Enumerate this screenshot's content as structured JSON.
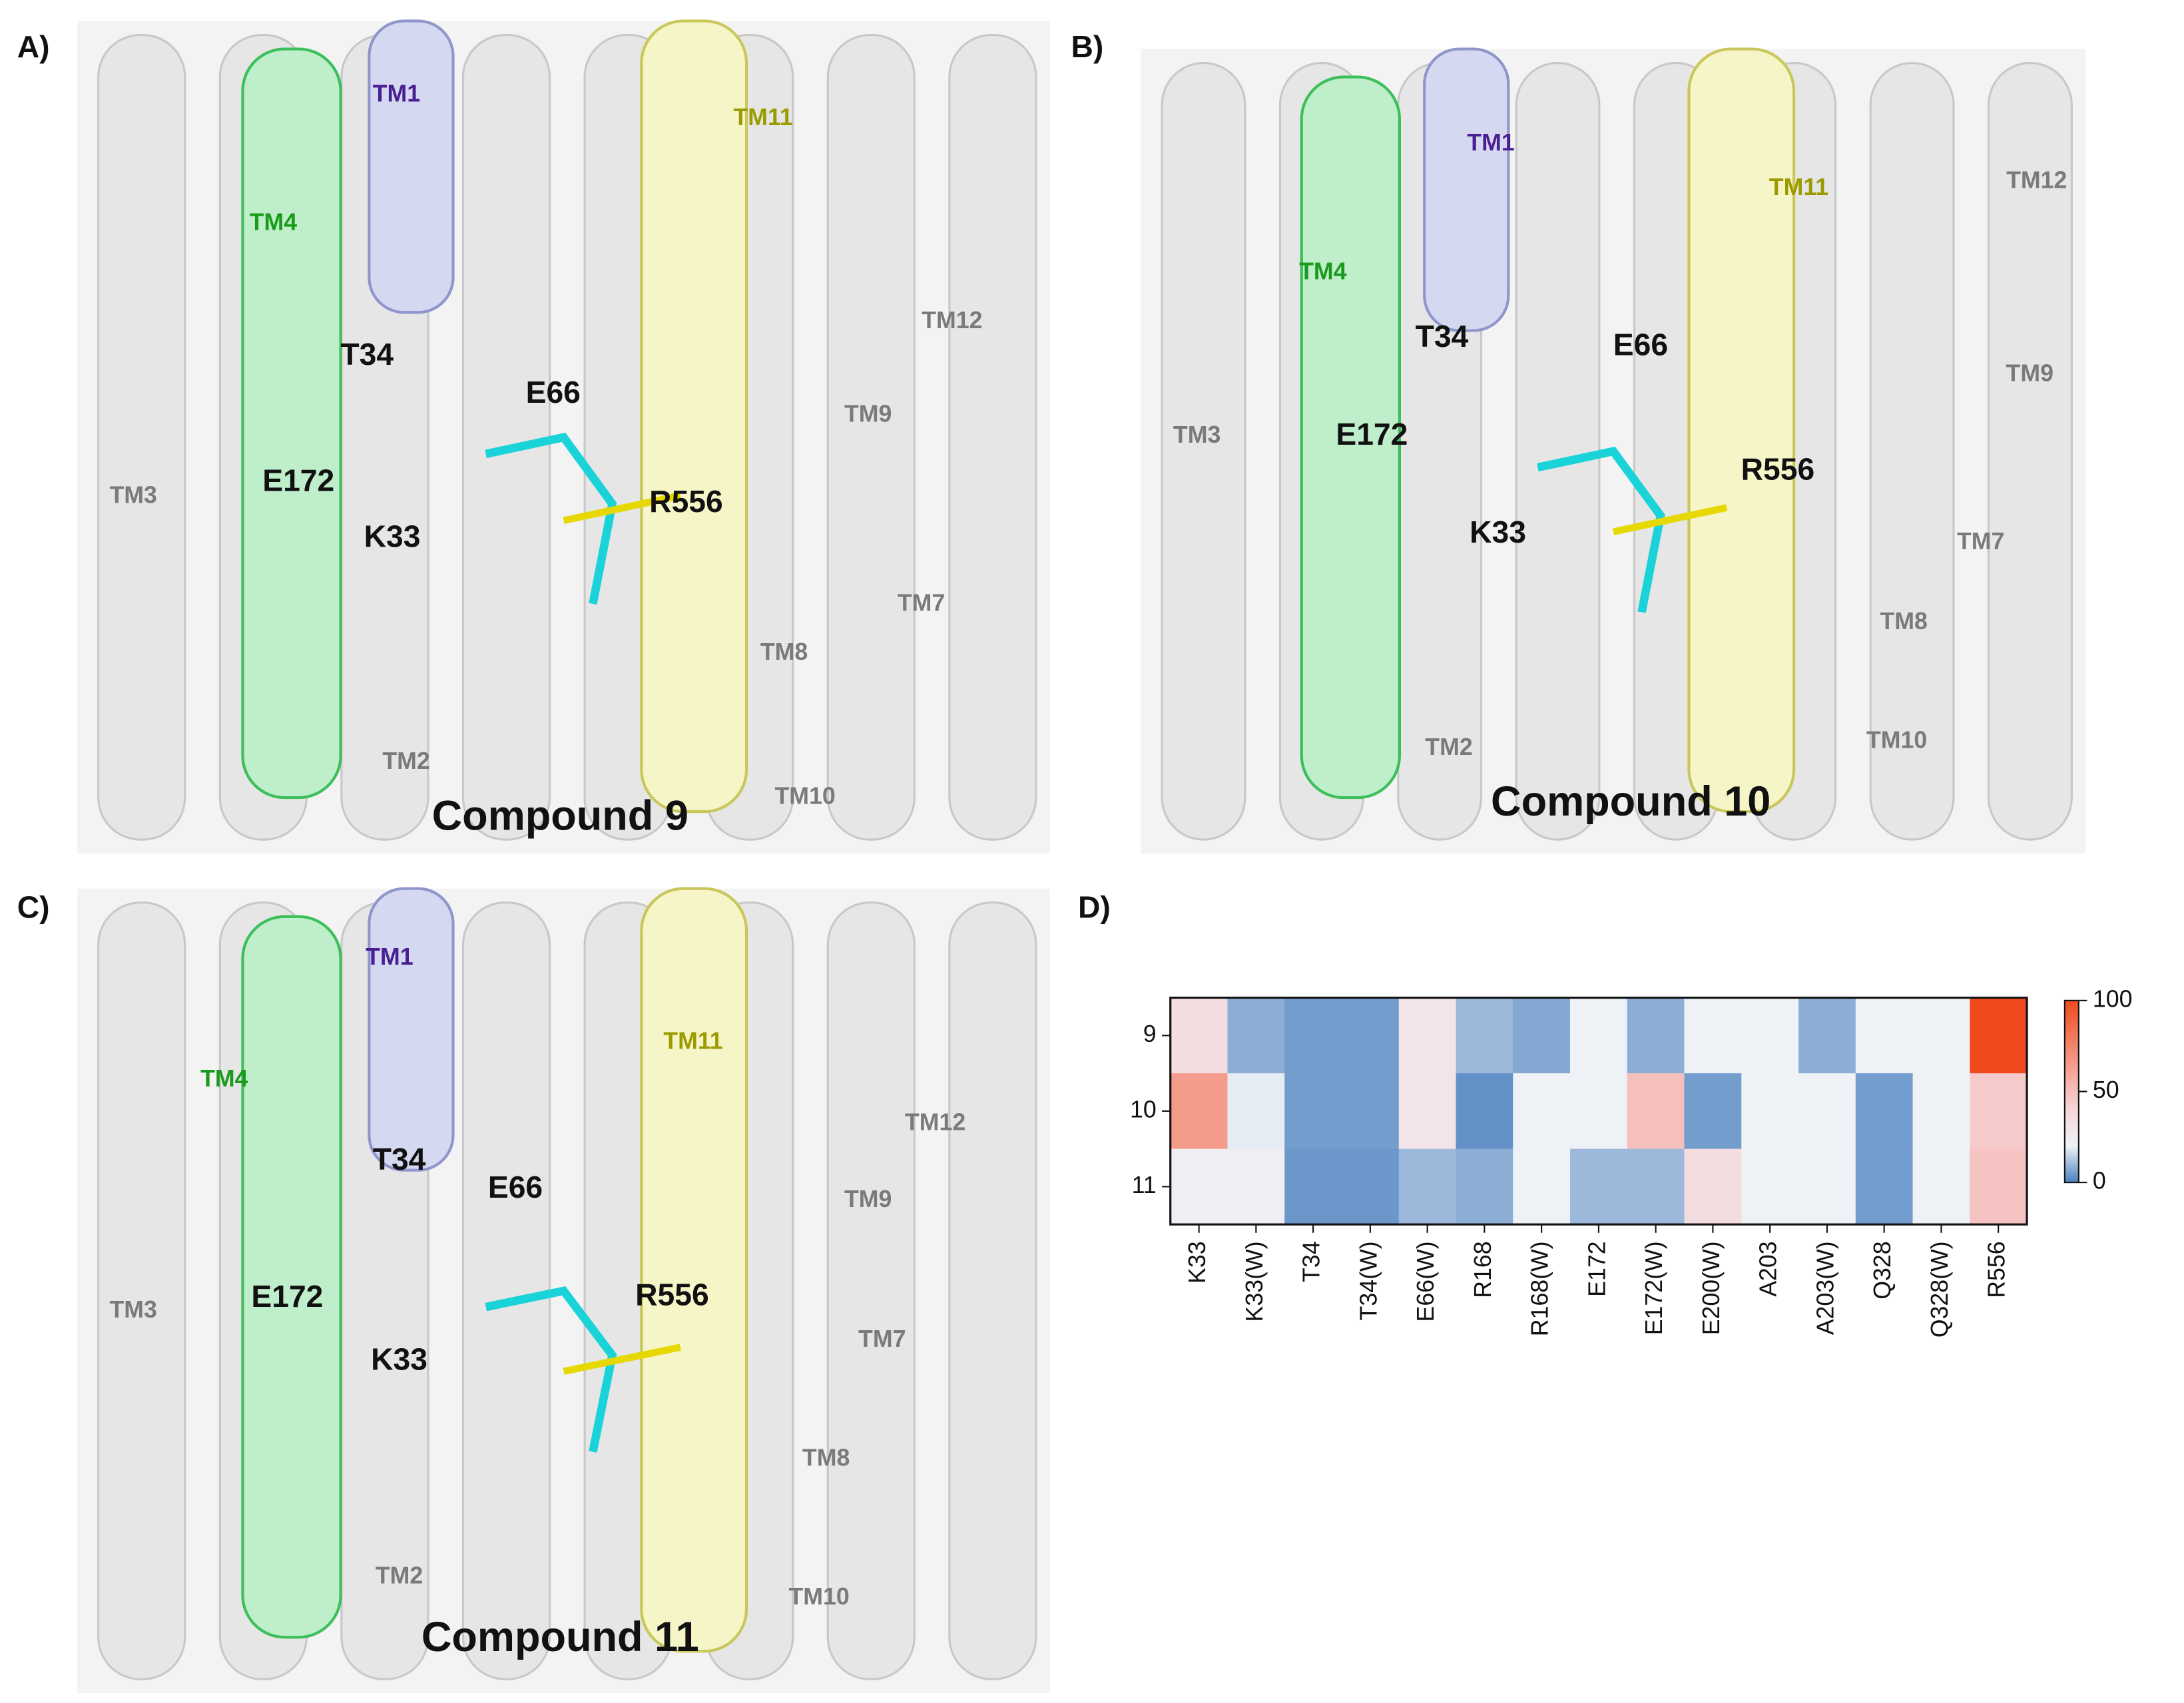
{
  "panels": [
    {
      "label": "A)",
      "caption": "Compound 9",
      "labels": [
        "TM1",
        "TM11",
        "TM4",
        "T34",
        "E66",
        "E172",
        "K33",
        "R556",
        "TM3",
        "TM12",
        "TM9",
        "TM7",
        "TM8",
        "TM2",
        "TM10"
      ]
    },
    {
      "label": "B)",
      "caption": "Compound 10",
      "labels": [
        "TM1",
        "TM11",
        "TM12",
        "TM4",
        "T34",
        "E66",
        "TM9",
        "TM3",
        "E172",
        "R556",
        "K33",
        "TM7",
        "TM8",
        "TM2",
        "TM10"
      ]
    },
    {
      "label": "C)",
      "caption": "Compound 11",
      "labels": [
        "TM1",
        "TM11",
        "TM4",
        "TM12",
        "T34",
        "E66",
        "TM9",
        "TM3",
        "E172",
        "R556",
        "TM7",
        "K33",
        "TM8",
        "TM2",
        "TM10"
      ]
    }
  ],
  "chart_data": {
    "type": "heatmap",
    "label": "D)",
    "rows": [
      "9",
      "10",
      "11"
    ],
    "columns": [
      "K33",
      "K33(W)",
      "T34",
      "T34(W)",
      "E66(W)",
      "R168",
      "R168(W)",
      "E172",
      "E172(W)",
      "E200(W)",
      "A203",
      "A203(W)",
      "Q328",
      "Q328(W)",
      "R556"
    ],
    "values": [
      [
        35,
        8,
        5,
        5,
        30,
        10,
        7,
        20,
        8,
        20,
        20,
        8,
        20,
        20,
        100
      ],
      [
        65,
        19,
        5,
        5,
        30,
        3,
        20,
        20,
        50,
        5,
        20,
        20,
        5,
        20,
        45
      ],
      [
        22,
        22,
        4,
        4,
        10,
        8,
        20,
        10,
        10,
        35,
        20,
        20,
        5,
        20,
        48
      ]
    ],
    "zlim": [
      0,
      100
    ],
    "zticks": [
      0,
      50,
      100
    ]
  }
}
